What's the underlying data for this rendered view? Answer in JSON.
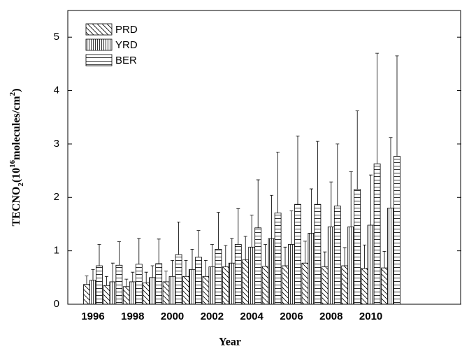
{
  "chart_data": {
    "type": "bar",
    "x_label": "Year",
    "y_label": [
      "TECNO",
      "2",
      "(10",
      "16",
      "molecules/cm",
      "2",
      ")"
    ],
    "categories": [
      "1996",
      null,
      "1998",
      null,
      "2000",
      null,
      "2002",
      null,
      "2004",
      null,
      "2006",
      null,
      "2008",
      null,
      "2010",
      null
    ],
    "series": [
      {
        "name": "PRD",
        "color": "#000000",
        "hatch": "diagonal",
        "values": [
          0.37,
          0.35,
          0.33,
          0.4,
          0.42,
          0.52,
          0.52,
          0.7,
          0.83,
          0.71,
          0.72,
          0.77,
          0.7,
          0.72,
          0.67,
          0.68
        ],
        "errors": [
          0.16,
          0.17,
          0.14,
          0.2,
          0.2,
          0.3,
          0.3,
          0.4,
          0.44,
          0.41,
          0.35,
          0.41,
          0.28,
          0.34,
          0.44,
          0.31
        ]
      },
      {
        "name": "YRD",
        "color": "#000000",
        "hatch": "vertical",
        "values": [
          0.45,
          0.42,
          0.42,
          0.5,
          0.52,
          0.65,
          0.7,
          0.77,
          1.07,
          1.23,
          1.12,
          1.33,
          1.45,
          1.45,
          1.48,
          1.8
        ],
        "errors": [
          0.2,
          0.35,
          0.18,
          0.22,
          0.3,
          0.38,
          0.42,
          0.46,
          0.6,
          0.81,
          0.63,
          0.83,
          0.84,
          1.03,
          0.94,
          1.32
        ]
      },
      {
        "name": "BER",
        "color": "#000000",
        "hatch": "horizontal",
        "values": [
          0.72,
          0.73,
          0.75,
          0.76,
          0.93,
          0.88,
          1.03,
          1.12,
          1.43,
          1.71,
          1.87,
          1.87,
          1.84,
          2.15,
          2.63,
          2.77
        ],
        "errors": [
          0.4,
          0.44,
          0.48,
          0.46,
          0.61,
          0.5,
          0.69,
          0.67,
          0.9,
          1.14,
          1.28,
          1.18,
          1.16,
          1.47,
          2.07,
          1.88
        ]
      }
    ],
    "ylim": [
      0,
      5.5
    ],
    "yticks": [
      0,
      1,
      2,
      3,
      4,
      5
    ],
    "legend": "upper left"
  }
}
